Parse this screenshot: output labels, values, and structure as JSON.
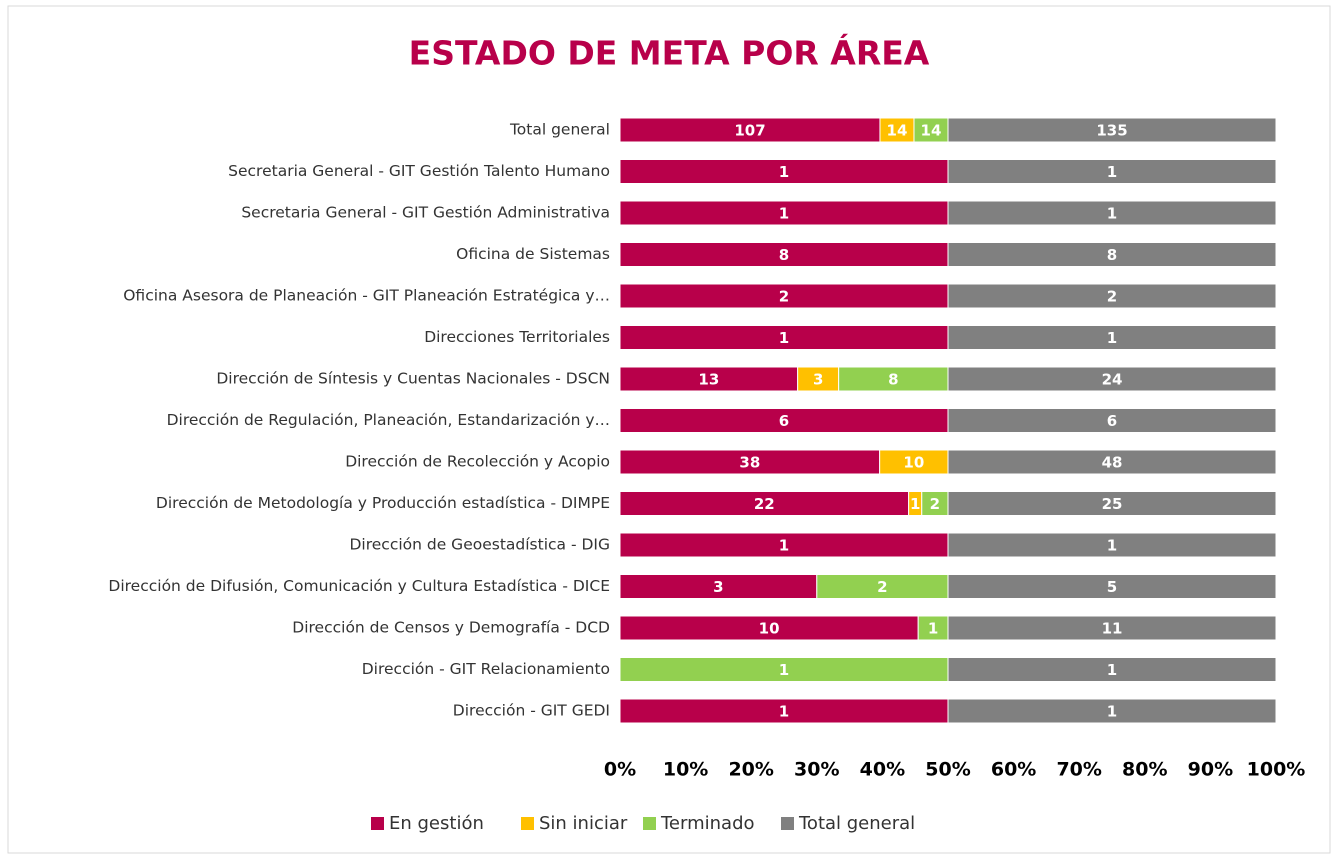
{
  "chart_data": {
    "type": "bar",
    "orientation": "horizontal",
    "stacking": "percent",
    "title": "ESTADO DE META POR ÁREA",
    "categories": [
      "Total general",
      "Secretaria General - GIT Gestión Talento Humano",
      "Secretaria General - GIT Gestión Administrativa",
      "Oficina de Sistemas",
      "Oficina Asesora de Planeación - GIT Planeación Estratégica y…",
      "Direcciones Territoriales",
      "Dirección de Síntesis y Cuentas Nacionales - DSCN",
      "Dirección de Regulación, Planeación, Estandarización y…",
      "Dirección de Recolección y Acopio",
      "Dirección de Metodología y Producción estadística - DIMPE",
      "Dirección de Geoestadística - DIG",
      "Dirección de Difusión, Comunicación y Cultura Estadística - DICE",
      "Dirección de Censos y Demografía - DCD",
      "Dirección - GIT Relacionamiento",
      "Dirección - GIT GEDI"
    ],
    "series": [
      {
        "name": "En gestión",
        "color": "#b8004a",
        "values": [
          107,
          1,
          1,
          8,
          2,
          1,
          13,
          6,
          38,
          22,
          1,
          3,
          10,
          null,
          1
        ]
      },
      {
        "name": "Sin iniciar",
        "color": "#ffc000",
        "values": [
          14,
          null,
          null,
          null,
          null,
          null,
          3,
          null,
          10,
          1,
          null,
          null,
          null,
          null,
          null
        ]
      },
      {
        "name": "Terminado",
        "color": "#92d050",
        "values": [
          14,
          null,
          null,
          null,
          null,
          null,
          8,
          null,
          null,
          2,
          null,
          2,
          1,
          1,
          null
        ]
      },
      {
        "name": "Total general",
        "color": "#808080",
        "values": [
          135,
          1,
          1,
          8,
          2,
          1,
          24,
          6,
          48,
          25,
          1,
          5,
          11,
          1,
          1
        ]
      }
    ],
    "xlim": [
      0,
      100
    ],
    "xticks": [
      {
        "value": 0,
        "label": "0%"
      },
      {
        "value": 10,
        "label": "10%"
      },
      {
        "value": 20,
        "label": "20%"
      },
      {
        "value": 30,
        "label": "30%"
      },
      {
        "value": 40,
        "label": "40%"
      },
      {
        "value": 50,
        "label": "50%"
      },
      {
        "value": 60,
        "label": "60%"
      },
      {
        "value": 70,
        "label": "70%"
      },
      {
        "value": 80,
        "label": "80%"
      },
      {
        "value": 90,
        "label": "90%"
      },
      {
        "value": 100,
        "label": "100%"
      }
    ],
    "legend": "bottom"
  }
}
